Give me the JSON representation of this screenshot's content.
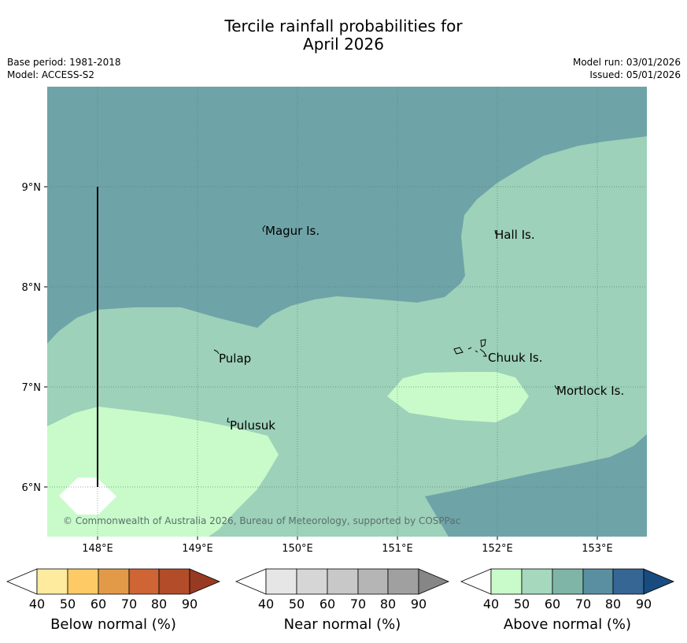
{
  "title": {
    "line1": "Tercile rainfall probabilities for",
    "line2": "April 2026"
  },
  "meta": {
    "base_period": "Base period: 1981-2018",
    "model": "Model: ACCESS-S2",
    "model_run": "Model run: 03/01/2026",
    "issued": "Issued: 05/01/2026"
  },
  "map": {
    "lon_ticks": [
      "148°E",
      "149°E",
      "150°E",
      "151°E",
      "152°E",
      "153°E"
    ],
    "lat_ticks": [
      "9°N",
      "8°N",
      "7°N",
      "6°N"
    ],
    "places": [
      {
        "id": "magur",
        "label": "Magur Is."
      },
      {
        "id": "hall",
        "label": "Hall Is."
      },
      {
        "id": "pulap",
        "label": "Pulap"
      },
      {
        "id": "chuuk",
        "label": "Chuuk Is."
      },
      {
        "id": "mortlock",
        "label": "Mortlock Is."
      },
      {
        "id": "pulusuk",
        "label": "Pulusuk"
      }
    ],
    "copyright": "© Commonwealth of Australia 2026, Bureau of Meteorology, supported by COSPPac"
  },
  "colorbars": [
    {
      "label": "Below normal (%)",
      "ticks": [
        "40",
        "50",
        "60",
        "70",
        "80",
        "90"
      ],
      "colors": [
        "#ffffff",
        "#feeb9e",
        "#fdca65",
        "#e39a48",
        "#cf6535",
        "#b34c28",
        "#973a22"
      ]
    },
    {
      "label": "Near normal (%)",
      "ticks": [
        "40",
        "50",
        "60",
        "70",
        "80",
        "90"
      ],
      "colors": [
        "#ffffff",
        "#e6e6e6",
        "#d6d6d6",
        "#c8c8c8",
        "#b5b5b5",
        "#a0a0a0",
        "#868686"
      ]
    },
    {
      "label": "Above normal (%)",
      "ticks": [
        "40",
        "50",
        "60",
        "70",
        "80",
        "90"
      ],
      "colors": [
        "#ffffff",
        "#c8fbc9",
        "#a5d8bd",
        "#7eb5a6",
        "#5a8fa2",
        "#356694",
        "#184b7e"
      ]
    }
  ],
  "colors": {
    "above_50_60": "#9dd1b9",
    "above_60_70": "#6ea4a8",
    "above_40_50": "#c8fbc9",
    "below_40": "#ffffff"
  }
}
